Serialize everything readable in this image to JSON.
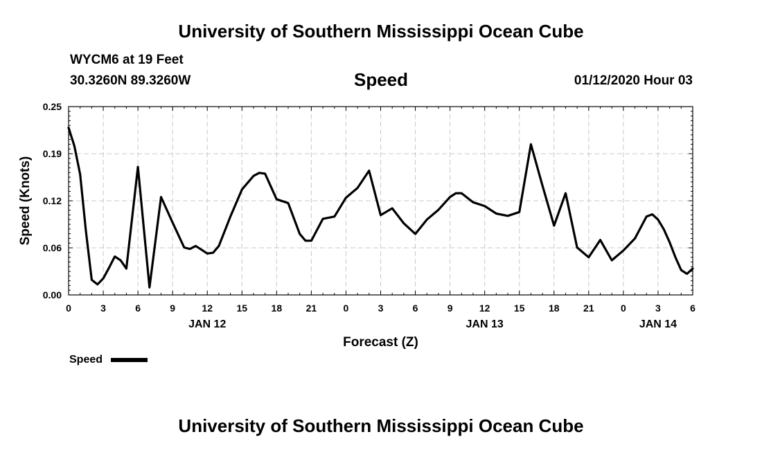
{
  "header": {
    "title": "University of Southern Mississippi Ocean Cube",
    "station": "WYCM6 at 19 Feet",
    "coordinates": "30.3260N 89.3260W",
    "issued": "01/12/2020 Hour 03"
  },
  "footer": {
    "title": "University of Southern Mississippi Ocean Cube"
  },
  "chart_data": {
    "type": "line",
    "title": "Speed",
    "xlabel": "Forecast (Z)",
    "ylabel": "Speed (Knots)",
    "ylim": [
      0,
      0.25
    ],
    "yticks": [
      "0.00",
      "0.06",
      "0.12",
      "0.19",
      "0.25"
    ],
    "ytick_values": [
      0,
      0.0625,
      0.125,
      0.1875,
      0.25
    ],
    "xlim": [
      0,
      54
    ],
    "xticks": [
      0,
      3,
      6,
      9,
      12,
      15,
      18,
      21,
      24,
      27,
      30,
      33,
      36,
      39,
      42,
      45,
      48,
      51,
      54
    ],
    "xtick_labels": [
      "0",
      "3",
      "6",
      "9",
      "12",
      "15",
      "18",
      "21",
      "0",
      "3",
      "6",
      "9",
      "12",
      "15",
      "18",
      "21",
      "0",
      "3",
      "6"
    ],
    "date_labels": [
      {
        "x": 12,
        "label": "JAN 12"
      },
      {
        "x": 36,
        "label": "JAN 13"
      },
      {
        "x": 51,
        "label": "JAN 14"
      }
    ],
    "grid": true,
    "legend_position": "bottom-left",
    "series": [
      {
        "name": "Speed",
        "color": "#000000",
        "x": [
          0,
          0.5,
          1,
          1.5,
          2,
          2.5,
          3,
          3.5,
          4,
          4.5,
          5,
          6,
          7,
          8,
          9,
          10,
          10.5,
          11,
          11.5,
          12,
          12.5,
          13,
          14,
          15,
          16,
          16.5,
          17,
          18,
          19,
          20,
          20.5,
          21,
          22,
          23,
          24,
          25,
          26,
          27,
          28,
          29,
          30,
          31,
          32,
          33,
          33.5,
          34,
          35,
          36,
          37,
          38,
          39,
          40,
          41,
          42,
          43,
          44,
          45,
          46,
          47,
          48,
          49,
          50,
          50.5,
          51,
          51.5,
          52,
          52.5,
          53,
          53.5,
          54
        ],
        "values": [
          0.222,
          0.198,
          0.16,
          0.085,
          0.02,
          0.014,
          0.022,
          0.036,
          0.051,
          0.046,
          0.035,
          0.17,
          0.01,
          0.13,
          0.096,
          0.063,
          0.061,
          0.065,
          0.06,
          0.055,
          0.056,
          0.065,
          0.104,
          0.14,
          0.158,
          0.162,
          0.161,
          0.127,
          0.122,
          0.081,
          0.072,
          0.072,
          0.101,
          0.104,
          0.129,
          0.142,
          0.165,
          0.106,
          0.115,
          0.095,
          0.081,
          0.1,
          0.113,
          0.13,
          0.135,
          0.135,
          0.123,
          0.118,
          0.108,
          0.105,
          0.11,
          0.2,
          0.145,
          0.092,
          0.135,
          0.063,
          0.05,
          0.073,
          0.046,
          0.059,
          0.075,
          0.104,
          0.107,
          0.1,
          0.087,
          0.07,
          0.05,
          0.033,
          0.028,
          0.035
        ]
      }
    ]
  }
}
